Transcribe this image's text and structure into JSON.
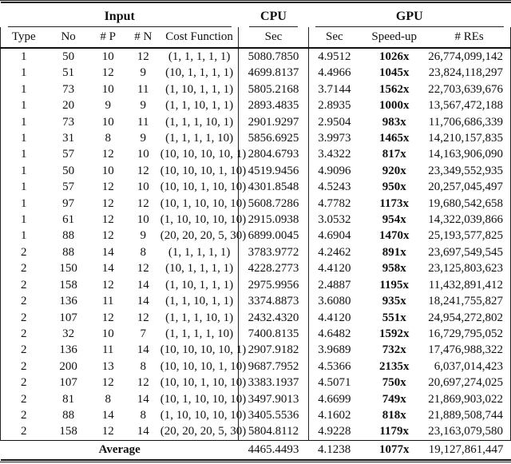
{
  "table": {
    "groups": {
      "input": "Input",
      "cpu": "CPU",
      "gpu": "GPU"
    },
    "columns": {
      "type": "Type",
      "no": "No",
      "p": "# P",
      "n": "# N",
      "cost": "Cost Function",
      "cpu_sec": "Sec",
      "gpu_sec": "Sec",
      "speedup": "Speed-up",
      "res": "# REs"
    }
  },
  "rows": [
    {
      "type": "1",
      "no": "50",
      "p": "10",
      "n": "12",
      "cost": "(1, 1, 1, 1, 1)",
      "cpu_sec": "5080.7850",
      "gpu_sec": "4.9512",
      "speedup": "1026x",
      "res": "26,774,099,142"
    },
    {
      "type": "1",
      "no": "51",
      "p": "12",
      "n": "9",
      "cost": "(10, 1, 1, 1, 1)",
      "cpu_sec": "4699.8137",
      "gpu_sec": "4.4966",
      "speedup": "1045x",
      "res": "23,824,118,297"
    },
    {
      "type": "1",
      "no": "73",
      "p": "10",
      "n": "11",
      "cost": "(1, 10, 1, 1, 1)",
      "cpu_sec": "5805.2168",
      "gpu_sec": "3.7144",
      "speedup": "1562x",
      "res": "22,703,639,676"
    },
    {
      "type": "1",
      "no": "20",
      "p": "9",
      "n": "9",
      "cost": "(1, 1, 10, 1, 1)",
      "cpu_sec": "2893.4835",
      "gpu_sec": "2.8935",
      "speedup": "1000x",
      "res": "13,567,472,188"
    },
    {
      "type": "1",
      "no": "73",
      "p": "10",
      "n": "11",
      "cost": "(1, 1, 1, 10, 1)",
      "cpu_sec": "2901.9297",
      "gpu_sec": "2.9504",
      "speedup": "983x",
      "res": "11,706,686,339"
    },
    {
      "type": "1",
      "no": "31",
      "p": "8",
      "n": "9",
      "cost": "(1, 1, 1, 1, 10)",
      "cpu_sec": "5856.6925",
      "gpu_sec": "3.9973",
      "speedup": "1465x",
      "res": "14,210,157,835"
    },
    {
      "type": "1",
      "no": "57",
      "p": "12",
      "n": "10",
      "cost": "(10, 10, 10, 10, 1)",
      "cpu_sec": "2804.6793",
      "gpu_sec": "3.4322",
      "speedup": "817x",
      "res": "14,163,906,090"
    },
    {
      "type": "1",
      "no": "50",
      "p": "10",
      "n": "12",
      "cost": "(10, 10, 10, 1, 10)",
      "cpu_sec": "4519.9456",
      "gpu_sec": "4.9096",
      "speedup": "920x",
      "res": "23,349,552,935"
    },
    {
      "type": "1",
      "no": "57",
      "p": "12",
      "n": "10",
      "cost": "(10, 10, 1, 10, 10)",
      "cpu_sec": "4301.8548",
      "gpu_sec": "4.5243",
      "speedup": "950x",
      "res": "20,257,045,497"
    },
    {
      "type": "1",
      "no": "97",
      "p": "12",
      "n": "12",
      "cost": "(10, 1, 10, 10, 10)",
      "cpu_sec": "5608.7286",
      "gpu_sec": "4.7782",
      "speedup": "1173x",
      "res": "19,680,542,658"
    },
    {
      "type": "1",
      "no": "61",
      "p": "12",
      "n": "10",
      "cost": "(1, 10, 10, 10, 10)",
      "cpu_sec": "2915.0938",
      "gpu_sec": "3.0532",
      "speedup": "954x",
      "res": "14,322,039,866"
    },
    {
      "type": "1",
      "no": "88",
      "p": "12",
      "n": "9",
      "cost": "(20, 20, 20, 5, 30)",
      "cpu_sec": "6899.0045",
      "gpu_sec": "4.6904",
      "speedup": "1470x",
      "res": "25,193,577,825"
    },
    {
      "type": "2",
      "no": "88",
      "p": "14",
      "n": "8",
      "cost": "(1, 1, 1, 1, 1)",
      "cpu_sec": "3783.9772",
      "gpu_sec": "4.2462",
      "speedup": "891x",
      "res": "23,697,549,545"
    },
    {
      "type": "2",
      "no": "150",
      "p": "14",
      "n": "12",
      "cost": "(10, 1, 1, 1, 1)",
      "cpu_sec": "4228.2773",
      "gpu_sec": "4.4120",
      "speedup": "958x",
      "res": "23,125,803,623"
    },
    {
      "type": "2",
      "no": "158",
      "p": "12",
      "n": "14",
      "cost": "(1, 10, 1, 1, 1)",
      "cpu_sec": "2975.9956",
      "gpu_sec": "2.4887",
      "speedup": "1195x",
      "res": "11,432,891,412"
    },
    {
      "type": "2",
      "no": "136",
      "p": "11",
      "n": "14",
      "cost": "(1, 1, 10, 1, 1)",
      "cpu_sec": "3374.8873",
      "gpu_sec": "3.6080",
      "speedup": "935x",
      "res": "18,241,755,827"
    },
    {
      "type": "2",
      "no": "107",
      "p": "12",
      "n": "12",
      "cost": "(1, 1, 1, 10, 1)",
      "cpu_sec": "2432.4320",
      "gpu_sec": "4.4120",
      "speedup": "551x",
      "res": "24,954,272,802"
    },
    {
      "type": "2",
      "no": "32",
      "p": "10",
      "n": "7",
      "cost": "(1, 1, 1, 1, 10)",
      "cpu_sec": "7400.8135",
      "gpu_sec": "4.6482",
      "speedup": "1592x",
      "res": "16,729,795,052"
    },
    {
      "type": "2",
      "no": "136",
      "p": "11",
      "n": "14",
      "cost": "(10, 10, 10, 10, 1)",
      "cpu_sec": "2907.9182",
      "gpu_sec": "3.9689",
      "speedup": "732x",
      "res": "17,476,988,322"
    },
    {
      "type": "2",
      "no": "200",
      "p": "13",
      "n": "8",
      "cost": "(10, 10, 10, 1, 10)",
      "cpu_sec": "9687.7952",
      "gpu_sec": "4.5366",
      "speedup": "2135x",
      "res": "6,037,014,423"
    },
    {
      "type": "2",
      "no": "107",
      "p": "12",
      "n": "12",
      "cost": "(10, 10, 1, 10, 10)",
      "cpu_sec": "3383.1937",
      "gpu_sec": "4.5071",
      "speedup": "750x",
      "res": "20,697,274,025"
    },
    {
      "type": "2",
      "no": "81",
      "p": "8",
      "n": "14",
      "cost": "(10, 1, 10, 10, 10)",
      "cpu_sec": "3497.9013",
      "gpu_sec": "4.6699",
      "speedup": "749x",
      "res": "21,869,903,022"
    },
    {
      "type": "2",
      "no": "88",
      "p": "14",
      "n": "8",
      "cost": "(1, 10, 10, 10, 10)",
      "cpu_sec": "3405.5536",
      "gpu_sec": "4.1602",
      "speedup": "818x",
      "res": "21,889,508,744"
    },
    {
      "type": "2",
      "no": "158",
      "p": "12",
      "n": "14",
      "cost": "(20, 20, 20, 5, 30)",
      "cpu_sec": "5804.8112",
      "gpu_sec": "4.9228",
      "speedup": "1179x",
      "res": "23,163,079,580"
    }
  ],
  "average": {
    "label": "Average",
    "cpu_sec": "4465.4493",
    "gpu_sec": "4.1238",
    "speedup": "1077x",
    "res": "19,127,861,447"
  },
  "colors": {
    "text": "#111111",
    "rule": "#111111",
    "background": "#ffffff"
  }
}
